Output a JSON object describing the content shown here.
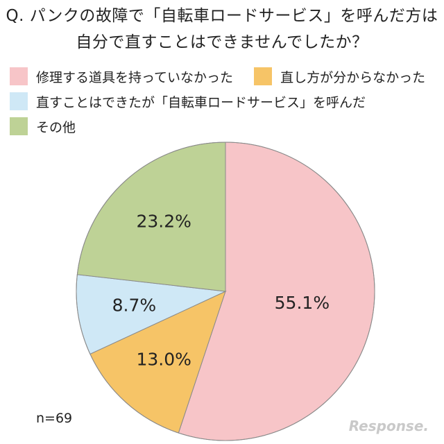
{
  "title_line1": "Q. パンクの故障で「自転車ロードサービス」を呼んだ方は",
  "title_line2": "自分で直すことはできませんでしたか？",
  "note": "n=69",
  "brand": "Response.",
  "chart_data": {
    "type": "pie",
    "title": "Q. パンクの故障で「自転車ロードサービス」を呼んだ方は 自分で直すことはできませんでしたか？",
    "slices": [
      {
        "name": "修理する道具を持っていなかった",
        "value": 55.1,
        "label": "55.1%",
        "color": "#f7c5c8"
      },
      {
        "name": "直し方が分からなかった",
        "value": 13.0,
        "label": "13.0%",
        "color": "#f6c467"
      },
      {
        "name": "直すことはできたが「自転車ロードサービス」を呼んだ",
        "value": 8.7,
        "label": "8.7%",
        "color": "#cfe8f6"
      },
      {
        "name": "その他",
        "value": 23.2,
        "label": "23.2%",
        "color": "#bed296"
      }
    ],
    "start_angle_deg": 0,
    "direction": "clockwise",
    "legend_position": "top-left",
    "n": 69
  }
}
